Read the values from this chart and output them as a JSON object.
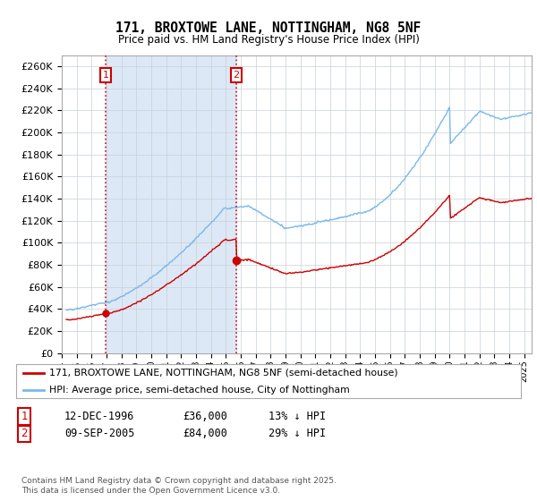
{
  "title": "171, BROXTOWE LANE, NOTTINGHAM, NG8 5NF",
  "subtitle": "Price paid vs. HM Land Registry's House Price Index (HPI)",
  "legend_line1": "171, BROXTOWE LANE, NOTTINGHAM, NG8 5NF (semi-detached house)",
  "legend_line2": "HPI: Average price, semi-detached house, City of Nottingham",
  "annotation1_date": "12-DEC-1996",
  "annotation1_price": "£36,000",
  "annotation1_hpi": "13% ↓ HPI",
  "annotation2_date": "09-SEP-2005",
  "annotation2_price": "£84,000",
  "annotation2_hpi": "29% ↓ HPI",
  "footnote": "Contains HM Land Registry data © Crown copyright and database right 2025.\nThis data is licensed under the Open Government Licence v3.0.",
  "hpi_color": "#7ab8e8",
  "price_color": "#cc0000",
  "annotation_color": "#cc0000",
  "shade_color": "#dce8f5",
  "plot_bg": "#ffffff",
  "ylim": [
    0,
    270000
  ],
  "ytick_step": 20000,
  "sale1_x": 1996.95,
  "sale1_y": 36000,
  "sale2_x": 2005.7,
  "sale2_y": 84000,
  "xmin": 1994.3,
  "xmax": 2025.5
}
